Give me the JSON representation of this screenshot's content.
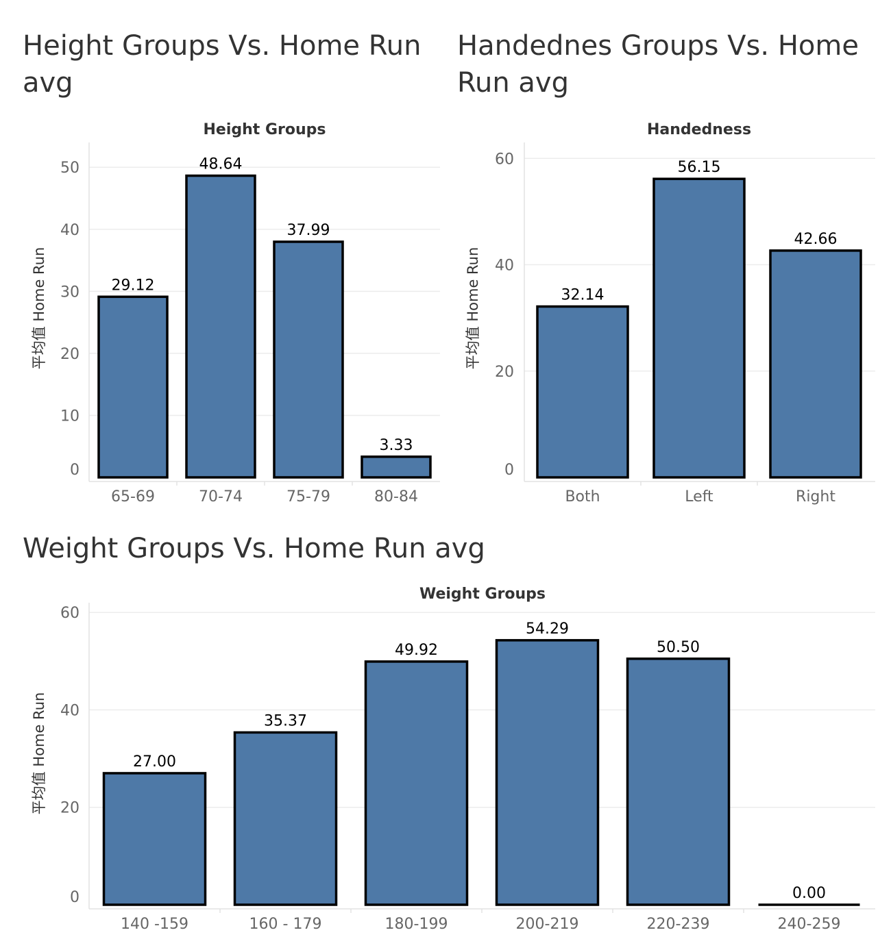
{
  "chart_data": [
    {
      "id": "height",
      "type": "bar",
      "title": "Height Groups Vs. Home Run avg",
      "xlabel": "Height Groups",
      "ylabel": "平均值 Home Run",
      "categories": [
        "65-69",
        "70-74",
        "75-79",
        "80-84"
      ],
      "values": [
        29.12,
        48.64,
        37.99,
        3.33
      ],
      "labels": [
        "29.12",
        "48.64",
        "37.99",
        "3.33"
      ],
      "yticks": [
        0,
        10,
        20,
        30,
        40,
        50
      ],
      "ylim": [
        0,
        54
      ],
      "grid": true,
      "bar_color": "#4e79a7",
      "bar_outline": "#000000"
    },
    {
      "id": "handedness",
      "type": "bar",
      "title": "Handednes Groups Vs. Home Run avg",
      "xlabel": "Handedness",
      "ylabel": "平均值 Home Run",
      "categories": [
        "Both",
        "Left",
        "Right"
      ],
      "values": [
        32.14,
        56.15,
        42.66
      ],
      "labels": [
        "32.14",
        "56.15",
        "42.66"
      ],
      "yticks": [
        0,
        20,
        40,
        60
      ],
      "ylim": [
        0,
        63
      ],
      "grid": true,
      "bar_color": "#4e79a7",
      "bar_outline": "#000000"
    },
    {
      "id": "weight",
      "type": "bar",
      "title": "Weight Groups Vs. Home Run avg",
      "xlabel": "Weight Groups",
      "ylabel": "平均值 Home Run",
      "categories": [
        "140 -159",
        "160 - 179",
        "180-199",
        "200-219",
        "220-239",
        "240-259"
      ],
      "values": [
        27.0,
        35.37,
        49.92,
        54.29,
        50.5,
        0.0
      ],
      "labels": [
        "27.00",
        "35.37",
        "49.92",
        "54.29",
        "50.50",
        "0.00"
      ],
      "yticks": [
        0,
        20,
        40,
        60
      ],
      "ylim": [
        0,
        62
      ],
      "grid": true,
      "bar_color": "#4e79a7",
      "bar_outline": "#000000"
    }
  ]
}
